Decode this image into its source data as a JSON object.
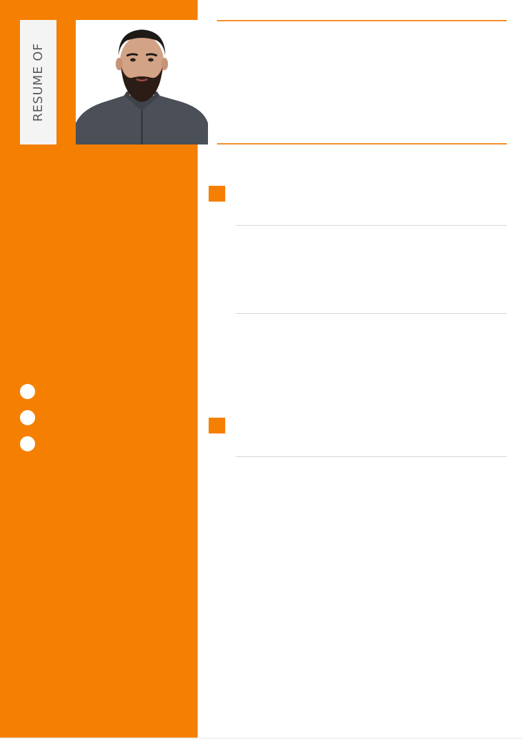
{
  "header": {
    "tab_label": "RESUME OF"
  },
  "colors": {
    "accent": "#f57f00",
    "tab_background": "#f4f4f4",
    "tab_text": "#5a5a5a",
    "rule_gray": "#d6d6d6"
  },
  "sidebar": {
    "contact_icons": [
      "circle-bullet",
      "circle-bullet",
      "circle-bullet"
    ]
  }
}
